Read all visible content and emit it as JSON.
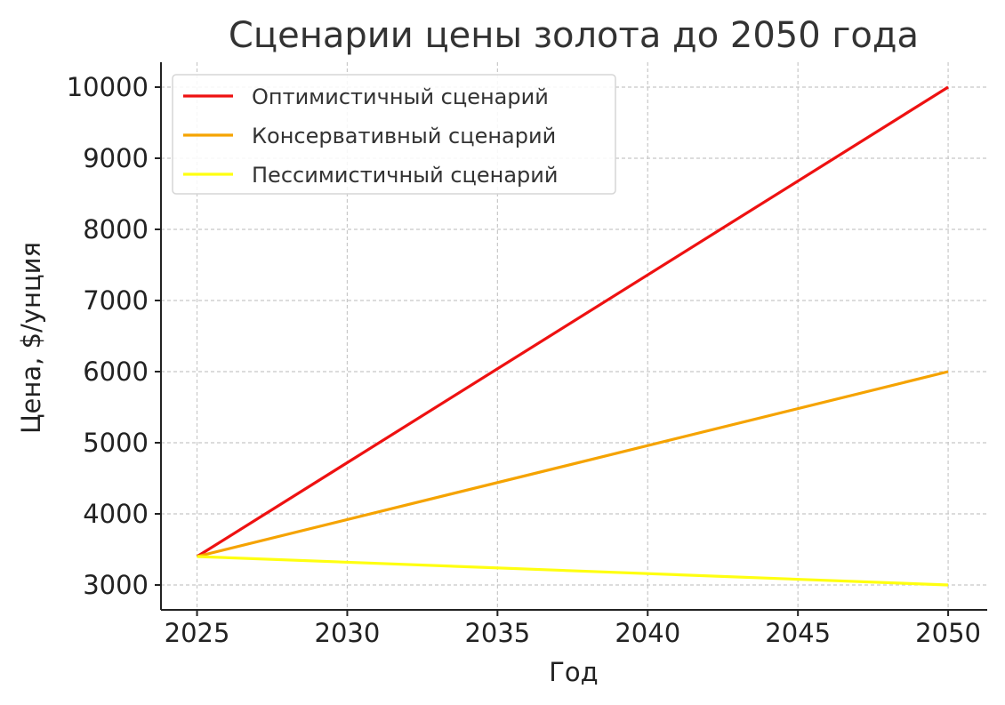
{
  "chart_data": {
    "type": "line",
    "title": "Сценарии цены золота до 2050 года",
    "xlabel": "Год",
    "ylabel": "Цена, $/унция",
    "x": [
      2025,
      2050
    ],
    "xticks": [
      "2025",
      "2030",
      "2035",
      "2040",
      "2045",
      "2050"
    ],
    "xtick_values": [
      2025,
      2030,
      2035,
      2040,
      2045,
      2050
    ],
    "yticks": [
      "3000",
      "4000",
      "5000",
      "6000",
      "7000",
      "8000",
      "9000",
      "10000"
    ],
    "ytick_values": [
      3000,
      4000,
      5000,
      6000,
      7000,
      8000,
      9000,
      10000
    ],
    "xlim": [
      2023.8,
      2051.3
    ],
    "ylim": [
      2650,
      10350
    ],
    "grid": true,
    "legend_position": "top-left",
    "series": [
      {
        "name": "Оптимистичный сценарий",
        "color": "#ee1111",
        "values": [
          3400,
          10000
        ]
      },
      {
        "name": "Консервативный сценарий",
        "color": "#f5a300",
        "values": [
          3400,
          6000
        ]
      },
      {
        "name": "Пессимистичный сценарий",
        "color": "#ffff11",
        "values": [
          3400,
          3000
        ]
      }
    ]
  }
}
